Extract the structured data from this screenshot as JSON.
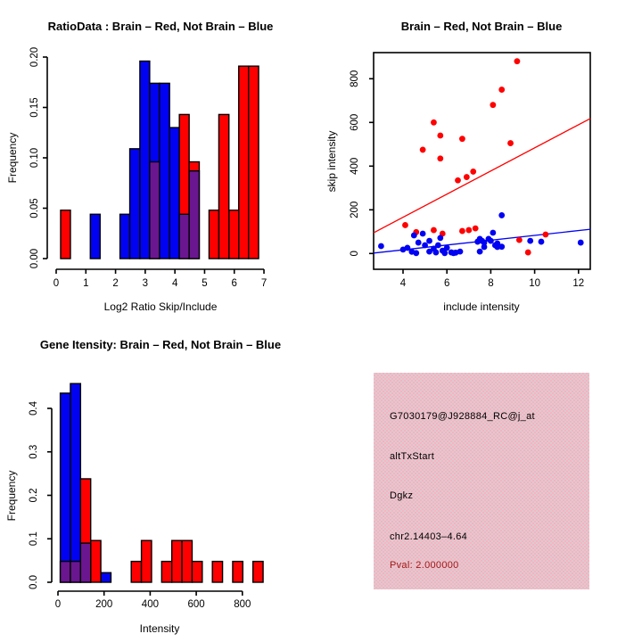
{
  "colors": {
    "brain_red": "#ff0000",
    "not_brain_blue": "#0202f2",
    "overlap_purple": "#6b1691",
    "pval_red": "#a01717",
    "text_black": "#000000",
    "info_pink": "#ffb0bf",
    "info_gray": "#d5ced2"
  },
  "chart_data": [
    {
      "id": "ratio_hist",
      "type": "bar",
      "title": "RatioData : Brain – Red, Not Brain – Blue",
      "xlabel": "Log2 Ratio Skip/Include",
      "ylabel": "Frequency",
      "xlim": [
        0,
        7
      ],
      "ylim": [
        0,
        0.2
      ],
      "grid": false,
      "xticks": [
        0,
        1,
        2,
        3,
        4,
        5,
        6,
        7
      ],
      "xtick_labels": [
        "0",
        "1",
        "2",
        "3",
        "4",
        "5",
        "6",
        "7"
      ],
      "yticks": [
        0,
        0.05,
        0.1,
        0.15,
        0.2
      ],
      "ytick_labels": [
        "0.00",
        "0.05",
        "0.10",
        "0.15",
        "0.20"
      ],
      "series": [
        {
          "name": "Not Brain",
          "color_key": "not_brain_blue",
          "bars": [
            [
              1.15,
              1.48,
              0.044
            ],
            [
              2.15,
              2.48,
              0.044
            ],
            [
              2.48,
              2.82,
              0.109
            ],
            [
              2.82,
              3.15,
              0.196
            ],
            [
              3.15,
              3.48,
              0.174
            ],
            [
              3.48,
              3.82,
              0.174
            ],
            [
              3.82,
              4.15,
              0.13
            ]
          ]
        },
        {
          "name": "Brain",
          "color_key": "brain_red",
          "bars": [
            [
              0.15,
              0.48,
              0.048
            ],
            [
              4.15,
              4.48,
              0.143
            ],
            [
              4.48,
              4.82,
              0.096
            ],
            [
              5.15,
              5.48,
              0.048
            ],
            [
              5.48,
              5.82,
              0.143
            ],
            [
              5.82,
              6.15,
              0.048
            ],
            [
              6.15,
              6.48,
              0.191
            ],
            [
              6.48,
              6.82,
              0.191
            ]
          ]
        },
        {
          "name": "Overlap",
          "color_key": "overlap_purple",
          "bars": [
            [
              3.15,
              3.48,
              0.096
            ],
            [
              4.15,
              4.48,
              0.044
            ],
            [
              4.48,
              4.82,
              0.087
            ]
          ]
        }
      ]
    },
    {
      "id": "scatter",
      "type": "scatter",
      "title": "Brain – Red, Not Brain – Blue",
      "xlabel": "include intensity",
      "ylabel": "skip intensity",
      "xlim": [
        2.66,
        12.54
      ],
      "ylim": [
        -70,
        920
      ],
      "grid": false,
      "xticks": [
        4,
        6,
        8,
        10,
        12
      ],
      "xtick_labels": [
        "4",
        "6",
        "8",
        "10",
        "12"
      ],
      "yticks": [
        0,
        200,
        400,
        600,
        800
      ],
      "ytick_labels": [
        "0",
        "200",
        "400",
        "600",
        "800"
      ],
      "series": [
        {
          "name": "Brain",
          "color_key": "brain_red",
          "points": [
            [
              4.1,
              130
            ],
            [
              4.6,
              98
            ],
            [
              4.9,
              475
            ],
            [
              5.4,
              600
            ],
            [
              5.4,
              107
            ],
            [
              5.7,
              540
            ],
            [
              5.7,
              435
            ],
            [
              5.8,
              91
            ],
            [
              6.5,
              335
            ],
            [
              6.7,
              525
            ],
            [
              6.7,
              103
            ],
            [
              6.9,
              350
            ],
            [
              7.0,
              107
            ],
            [
              7.2,
              375
            ],
            [
              7.3,
              115
            ],
            [
              8.1,
              680
            ],
            [
              8.5,
              750
            ],
            [
              8.9,
              505
            ],
            [
              9.2,
              880
            ],
            [
              9.3,
              62
            ],
            [
              9.7,
              5
            ],
            [
              10.5,
              87
            ]
          ]
        },
        {
          "name": "Not Brain",
          "color_key": "not_brain_blue",
          "points": [
            [
              3.0,
              34
            ],
            [
              4.0,
              18
            ],
            [
              4.2,
              26
            ],
            [
              4.4,
              8
            ],
            [
              4.5,
              83
            ],
            [
              4.6,
              2
            ],
            [
              4.7,
              50
            ],
            [
              4.9,
              91
            ],
            [
              5.0,
              38
            ],
            [
              5.2,
              58
            ],
            [
              5.2,
              9
            ],
            [
              5.4,
              22
            ],
            [
              5.5,
              5
            ],
            [
              5.6,
              38
            ],
            [
              5.7,
              71
            ],
            [
              5.8,
              13
            ],
            [
              5.9,
              2
            ],
            [
              6.0,
              26
            ],
            [
              6.2,
              5
            ],
            [
              6.3,
              2
            ],
            [
              6.4,
              4
            ],
            [
              6.6,
              9
            ],
            [
              7.4,
              54
            ],
            [
              7.5,
              67
            ],
            [
              7.5,
              9
            ],
            [
              7.6,
              58
            ],
            [
              7.7,
              50
            ],
            [
              7.7,
              30
            ],
            [
              7.9,
              67
            ],
            [
              8.0,
              58
            ],
            [
              8.1,
              95
            ],
            [
              8.2,
              38
            ],
            [
              8.3,
              46
            ],
            [
              8.3,
              30
            ],
            [
              8.5,
              31
            ],
            [
              8.5,
              175
            ],
            [
              9.8,
              58
            ],
            [
              10.3,
              54
            ],
            [
              12.1,
              50
            ]
          ]
        }
      ],
      "lines": [
        {
          "name": "brain-fit",
          "color_key": "brain_red",
          "x1": 2.66,
          "y1": 95,
          "x2": 12.54,
          "y2": 618
        },
        {
          "name": "not-brain-fit",
          "color_key": "not_brain_blue",
          "x1": 2.66,
          "y1": 2,
          "x2": 12.54,
          "y2": 111
        }
      ]
    },
    {
      "id": "gene_hist",
      "type": "bar",
      "title": "Gene Itensity: Brain – Red, Not Brain – Blue",
      "xlabel": "Intensity",
      "ylabel": "Frequency",
      "xlim": [
        0,
        890
      ],
      "ylim": [
        0,
        0.46
      ],
      "grid": false,
      "xticks": [
        0,
        200,
        400,
        600,
        800
      ],
      "xtick_labels": [
        "0",
        "200",
        "400",
        "600",
        "800"
      ],
      "yticks": [
        0,
        0.1,
        0.2,
        0.3,
        0.4
      ],
      "ytick_labels": [
        "0.0",
        "0.1",
        "0.2",
        "0.3",
        "0.4"
      ],
      "series": [
        {
          "name": "Not Brain",
          "color_key": "not_brain_blue",
          "bars": [
            [
              10,
              54,
              0.435
            ],
            [
              54,
              98,
              0.457
            ],
            [
              186,
              230,
              0.022
            ]
          ]
        },
        {
          "name": "Brain",
          "color_key": "brain_red",
          "bars": [
            [
              98,
              142,
              0.238
            ],
            [
              142,
              186,
              0.096
            ],
            [
              318,
              362,
              0.048
            ],
            [
              362,
              406,
              0.096
            ],
            [
              450,
              494,
              0.048
            ],
            [
              494,
              538,
              0.096
            ],
            [
              538,
              582,
              0.096
            ],
            [
              582,
              626,
              0.048
            ],
            [
              670,
              714,
              0.048
            ],
            [
              758,
              802,
              0.048
            ],
            [
              846,
              890,
              0.048
            ]
          ]
        },
        {
          "name": "Overlap",
          "color_key": "overlap_purple",
          "bars": [
            [
              10,
              54,
              0.048
            ],
            [
              54,
              98,
              0.048
            ],
            [
              98,
              142,
              0.09
            ]
          ]
        }
      ]
    }
  ],
  "info_panel": {
    "lines": [
      {
        "text": "G7030179@J928884_RC@j_at",
        "color_key": "text_black"
      },
      {
        "text": "altTxStart",
        "color_key": "text_black"
      },
      {
        "text": "Dgkz",
        "color_key": "text_black"
      },
      {
        "text": "chr2.14403–4.64",
        "color_key": "text_black"
      },
      {
        "text": "Pval: 2.000000",
        "color_key": "pval_red"
      }
    ]
  }
}
